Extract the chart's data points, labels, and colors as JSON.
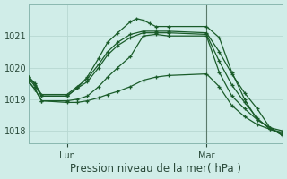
{
  "bg_color": "#d0ede8",
  "grid_color": "#b8d8d2",
  "line_color": "#1a5c2a",
  "spine_color": "#8ab8b0",
  "xlabel": "Pression niveau de la mer( hPa )",
  "xlabel_fontsize": 8.5,
  "xtick_labels": [
    "Lun",
    "Mar"
  ],
  "xtick_fontsize": 7,
  "ytick_fontsize": 7,
  "ylim": [
    1017.6,
    1022.0
  ],
  "yticks": [
    1018,
    1019,
    1020,
    1021
  ],
  "xlim_days": [
    0.0,
    2.0
  ],
  "lun_x": 0.3,
  "mar_x": 1.4,
  "vline_x": 1.4,
  "lines": [
    {
      "x": [
        0.0,
        0.05,
        0.1,
        0.3,
        0.38,
        0.46,
        0.55,
        0.62,
        0.7,
        0.8,
        0.85,
        0.9,
        0.95,
        1.0,
        1.1,
        1.4,
        1.5,
        1.6,
        1.7,
        1.8,
        1.9,
        2.0
      ],
      "y": [
        1019.7,
        1019.5,
        1019.1,
        1019.1,
        1019.35,
        1019.7,
        1020.3,
        1020.8,
        1021.1,
        1021.45,
        1021.55,
        1021.5,
        1021.4,
        1021.3,
        1021.3,
        1021.3,
        1020.95,
        1019.85,
        1019.0,
        1018.35,
        1018.1,
        1017.85
      ]
    },
    {
      "x": [
        0.0,
        0.05,
        0.1,
        0.3,
        0.38,
        0.46,
        0.55,
        0.62,
        0.7,
        0.8,
        0.9,
        1.0,
        1.1,
        1.4,
        1.5,
        1.6,
        1.7,
        1.8,
        1.9,
        2.0
      ],
      "y": [
        1019.7,
        1019.45,
        1019.15,
        1019.15,
        1019.4,
        1019.65,
        1020.1,
        1020.5,
        1020.8,
        1021.05,
        1021.15,
        1021.15,
        1021.15,
        1021.1,
        1020.5,
        1019.8,
        1019.2,
        1018.7,
        1018.1,
        1018.0
      ]
    },
    {
      "x": [
        0.0,
        0.05,
        0.1,
        0.3,
        0.38,
        0.46,
        0.55,
        0.62,
        0.7,
        0.8,
        0.9,
        1.0,
        1.1,
        1.4,
        1.5,
        1.6,
        1.7,
        1.8,
        1.9,
        2.0
      ],
      "y": [
        1019.65,
        1019.4,
        1019.1,
        1019.1,
        1019.35,
        1019.55,
        1020.0,
        1020.4,
        1020.7,
        1020.95,
        1021.1,
        1021.1,
        1021.1,
        1021.05,
        1020.2,
        1019.45,
        1018.9,
        1018.4,
        1018.05,
        1017.95
      ]
    },
    {
      "x": [
        0.0,
        0.05,
        0.1,
        0.3,
        0.38,
        0.46,
        0.55,
        0.62,
        0.7,
        0.8,
        0.9,
        1.0,
        1.1,
        1.4,
        1.5,
        1.6,
        1.7,
        1.8,
        1.9,
        2.0
      ],
      "y": [
        1019.55,
        1019.3,
        1018.95,
        1018.95,
        1019.0,
        1019.1,
        1019.4,
        1019.7,
        1020.0,
        1020.35,
        1021.0,
        1021.05,
        1021.0,
        1021.0,
        1019.85,
        1019.1,
        1018.7,
        1018.35,
        1018.1,
        1017.85
      ]
    },
    {
      "x": [
        0.0,
        0.05,
        0.1,
        0.3,
        0.38,
        0.46,
        0.55,
        0.62,
        0.7,
        0.8,
        0.9,
        1.0,
        1.1,
        1.4,
        1.5,
        1.6,
        1.7,
        1.8,
        1.9,
        2.0
      ],
      "y": [
        1019.55,
        1019.3,
        1018.95,
        1018.9,
        1018.9,
        1018.95,
        1019.05,
        1019.15,
        1019.25,
        1019.4,
        1019.6,
        1019.7,
        1019.75,
        1019.8,
        1019.4,
        1018.8,
        1018.45,
        1018.2,
        1018.05,
        1017.9
      ]
    }
  ]
}
